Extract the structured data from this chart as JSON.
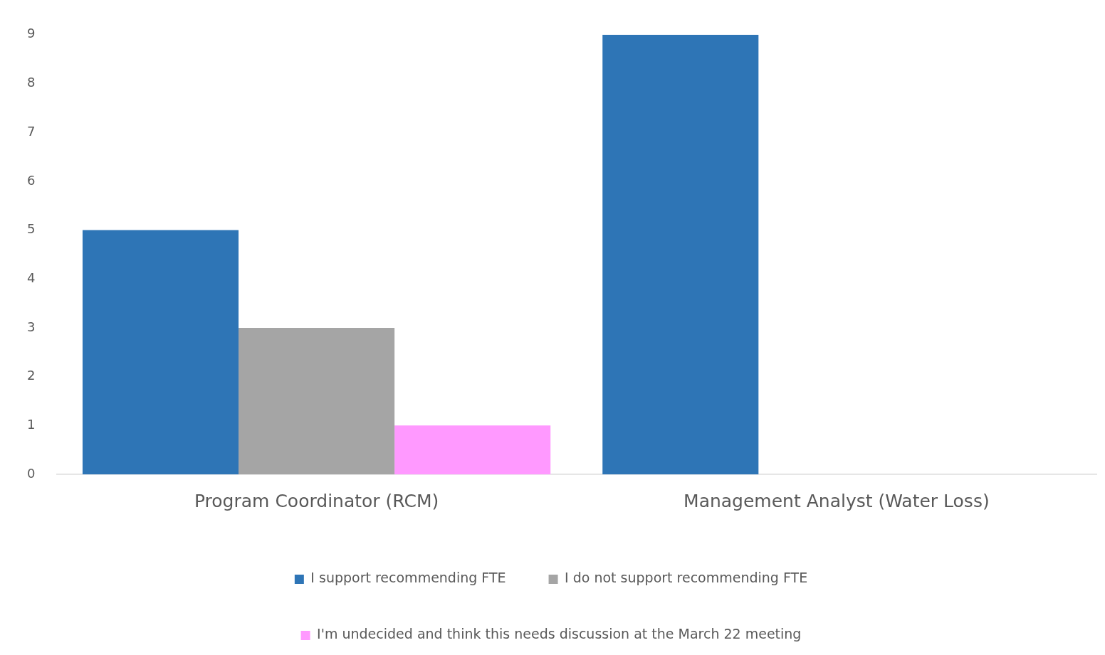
{
  "chart_data": {
    "type": "bar",
    "categories": [
      "Program Coordinator (RCM)",
      "Management Analyst (Water Loss)"
    ],
    "series": [
      {
        "name": "I support recommending FTE",
        "color": "#2e75b6",
        "values": [
          5,
          9
        ]
      },
      {
        "name": "I do not support recommending FTE",
        "color": "#a5a5a5",
        "values": [
          3,
          0
        ]
      },
      {
        "name": "I'm undecided and think this needs discussion at the March 22 meeting",
        "color": "#ff99ff",
        "values": [
          1,
          0
        ]
      }
    ],
    "ylim": [
      0,
      9
    ],
    "yticks": [
      0,
      1,
      2,
      3,
      4,
      5,
      6,
      7,
      8,
      9
    ],
    "grid": false,
    "legend": "bottom"
  }
}
